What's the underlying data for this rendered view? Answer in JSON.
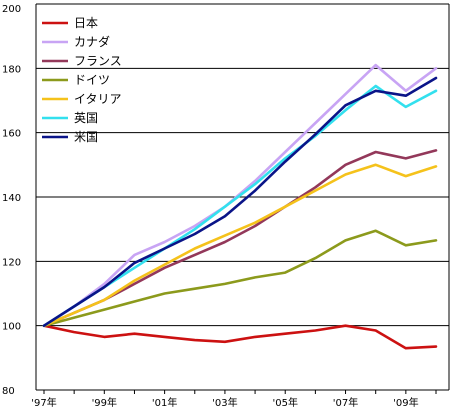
{
  "chart_data": {
    "type": "line",
    "title": "",
    "xlabel": "",
    "ylabel": "",
    "ylim": [
      80,
      200
    ],
    "yticks": [
      80,
      100,
      120,
      140,
      160,
      180,
      200
    ],
    "x": [
      1997,
      1998,
      1999,
      2000,
      2001,
      2002,
      2003,
      2004,
      2005,
      2006,
      2007,
      2008,
      2009,
      2010
    ],
    "xtick_labels": [
      {
        "x": 1997,
        "label": "'97年"
      },
      {
        "x": 1999,
        "label": "'99年"
      },
      {
        "x": 2001,
        "label": "'01年"
      },
      {
        "x": 2003,
        "label": "'03年"
      },
      {
        "x": 2005,
        "label": "'05年"
      },
      {
        "x": 2007,
        "label": "'07年"
      },
      {
        "x": 2009,
        "label": "'09年"
      }
    ],
    "grid": "horizontal",
    "legend_position": "top-left",
    "series": [
      {
        "name": "日本",
        "color": "#cc1111",
        "values": [
          100,
          98,
          96.5,
          97.5,
          96.5,
          95.5,
          95,
          96.5,
          97.5,
          98.5,
          100,
          98.5,
          93,
          93.5
        ]
      },
      {
        "name": "カナダ",
        "color": "#c8a4f4",
        "values": [
          100,
          106,
          113,
          122,
          126,
          131,
          137,
          145,
          154,
          163,
          172,
          181,
          173,
          180
        ]
      },
      {
        "name": "フランス",
        "color": "#93385a",
        "values": [
          100,
          104,
          108,
          113,
          118,
          122,
          126,
          131,
          137,
          143,
          150,
          154,
          152,
          154.5
        ]
      },
      {
        "name": "ドイツ",
        "color": "#8c9a1c",
        "values": [
          100,
          102.5,
          105,
          107.5,
          110,
          111.5,
          113,
          115,
          116.5,
          121,
          126.5,
          129.5,
          125,
          126.5
        ]
      },
      {
        "name": "イタリア",
        "color": "#f5c21b",
        "values": [
          100,
          104,
          108,
          114,
          119,
          124,
          128,
          132,
          137,
          142,
          147,
          150,
          146.5,
          149.5
        ]
      },
      {
        "name": "英国",
        "color": "#33e0ee",
        "values": [
          100,
          106,
          112,
          118,
          124,
          130,
          137,
          144,
          152,
          159,
          167,
          174.5,
          168,
          173
        ]
      },
      {
        "name": "米国",
        "color": "#0a1488",
        "values": [
          100,
          106,
          112,
          119.5,
          124,
          128.5,
          134,
          142,
          151,
          159.5,
          168.5,
          173,
          171.5,
          177
        ]
      }
    ]
  }
}
